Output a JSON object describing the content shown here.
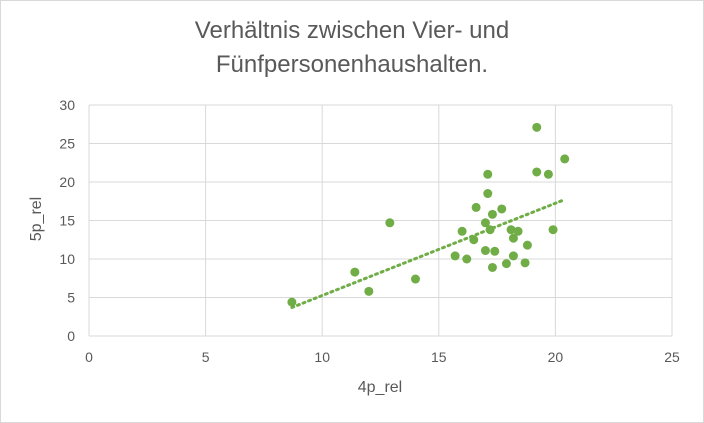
{
  "chart_data": {
    "type": "scatter",
    "title_line1": "Verhältnis zwischen Vier- und",
    "title_line2": "Fünfpersonenhaushalten.",
    "xlabel": "4p_rel",
    "ylabel": "5p_rel",
    "xlim": [
      0,
      25
    ],
    "ylim": [
      0,
      30
    ],
    "x_ticks": [
      0,
      5,
      10,
      15,
      20,
      25
    ],
    "y_ticks": [
      0,
      5,
      10,
      15,
      20,
      25,
      30
    ],
    "grid": true,
    "legend": "none",
    "marker_color": "#70ad47",
    "trendline": {
      "type": "linear",
      "style": "dotted",
      "color": "#70ad47",
      "x_from": 8.7,
      "x_to": 20.3,
      "y_from": 3.7,
      "y_to": 17.6
    },
    "points": [
      {
        "x": 8.7,
        "y": 4.4
      },
      {
        "x": 11.4,
        "y": 8.3
      },
      {
        "x": 12.0,
        "y": 5.8
      },
      {
        "x": 12.9,
        "y": 14.7
      },
      {
        "x": 14.0,
        "y": 7.4
      },
      {
        "x": 15.7,
        "y": 10.4
      },
      {
        "x": 16.0,
        "y": 13.6
      },
      {
        "x": 16.2,
        "y": 10.0
      },
      {
        "x": 16.5,
        "y": 12.5
      },
      {
        "x": 16.6,
        "y": 16.7
      },
      {
        "x": 17.0,
        "y": 14.7
      },
      {
        "x": 17.0,
        "y": 11.1
      },
      {
        "x": 17.1,
        "y": 18.5
      },
      {
        "x": 17.1,
        "y": 21.0
      },
      {
        "x": 17.2,
        "y": 13.8
      },
      {
        "x": 17.3,
        "y": 15.8
      },
      {
        "x": 17.3,
        "y": 8.9
      },
      {
        "x": 17.4,
        "y": 11.0
      },
      {
        "x": 17.7,
        "y": 16.5
      },
      {
        "x": 17.9,
        "y": 9.4
      },
      {
        "x": 18.1,
        "y": 13.8
      },
      {
        "x": 18.2,
        "y": 12.7
      },
      {
        "x": 18.2,
        "y": 10.4
      },
      {
        "x": 18.4,
        "y": 13.6
      },
      {
        "x": 18.7,
        "y": 9.5
      },
      {
        "x": 18.8,
        "y": 11.8
      },
      {
        "x": 19.2,
        "y": 27.1
      },
      {
        "x": 19.2,
        "y": 21.3
      },
      {
        "x": 19.7,
        "y": 21.0
      },
      {
        "x": 19.9,
        "y": 13.8
      },
      {
        "x": 20.4,
        "y": 23.0
      }
    ]
  }
}
